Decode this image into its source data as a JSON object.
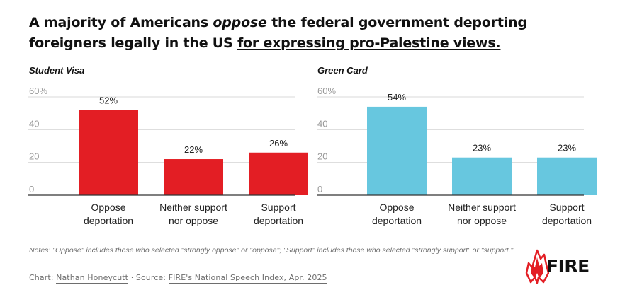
{
  "title": {
    "part1": "A majority of Americans ",
    "emph": "oppose",
    "part2": " the federal government deporting foreigners legally in the US ",
    "link": "for expressing pro-Palestine views."
  },
  "colors": {
    "student_visa": "#e31e24",
    "green_card": "#67c7df",
    "axis": "#999999",
    "grid": "#d9d9d9"
  },
  "chart_data": [
    {
      "type": "bar",
      "title": "Student Visa",
      "categories": [
        [
          "Oppose",
          "deportation"
        ],
        [
          "Neither support",
          "nor oppose"
        ],
        [
          "Support",
          "deportation"
        ]
      ],
      "values": [
        52,
        22,
        26
      ],
      "data_labels": [
        "52%",
        "22%",
        "26%"
      ],
      "yticks": [
        "60%",
        "40",
        "20",
        "0"
      ],
      "ylim": [
        0,
        60
      ],
      "grid": true
    },
    {
      "type": "bar",
      "title": "Green Card",
      "categories": [
        [
          "Oppose",
          "deportation"
        ],
        [
          "Neither support",
          "nor oppose"
        ],
        [
          "Support",
          "deportation"
        ]
      ],
      "values": [
        54,
        23,
        23
      ],
      "data_labels": [
        "54%",
        "23%",
        "23%"
      ],
      "yticks": [
        "60%",
        "40",
        "20",
        "0"
      ],
      "ylim": [
        0,
        60
      ],
      "grid": true
    }
  ],
  "notes": "Notes: \"Oppose\" includes those who selected \"strongly oppose\" or \"oppose\"; \"Support\" includes those who selected \"strongly support\" or \"support.\"",
  "credit": {
    "chart_prefix": "Chart: ",
    "author": "Nathan Honeycutt",
    "source_prefix": " · Source: ",
    "source": "FIRE's National Speech Index, Apr. 2025"
  },
  "logo": {
    "text": "FIRE",
    "icon": "flame-logo-icon"
  }
}
